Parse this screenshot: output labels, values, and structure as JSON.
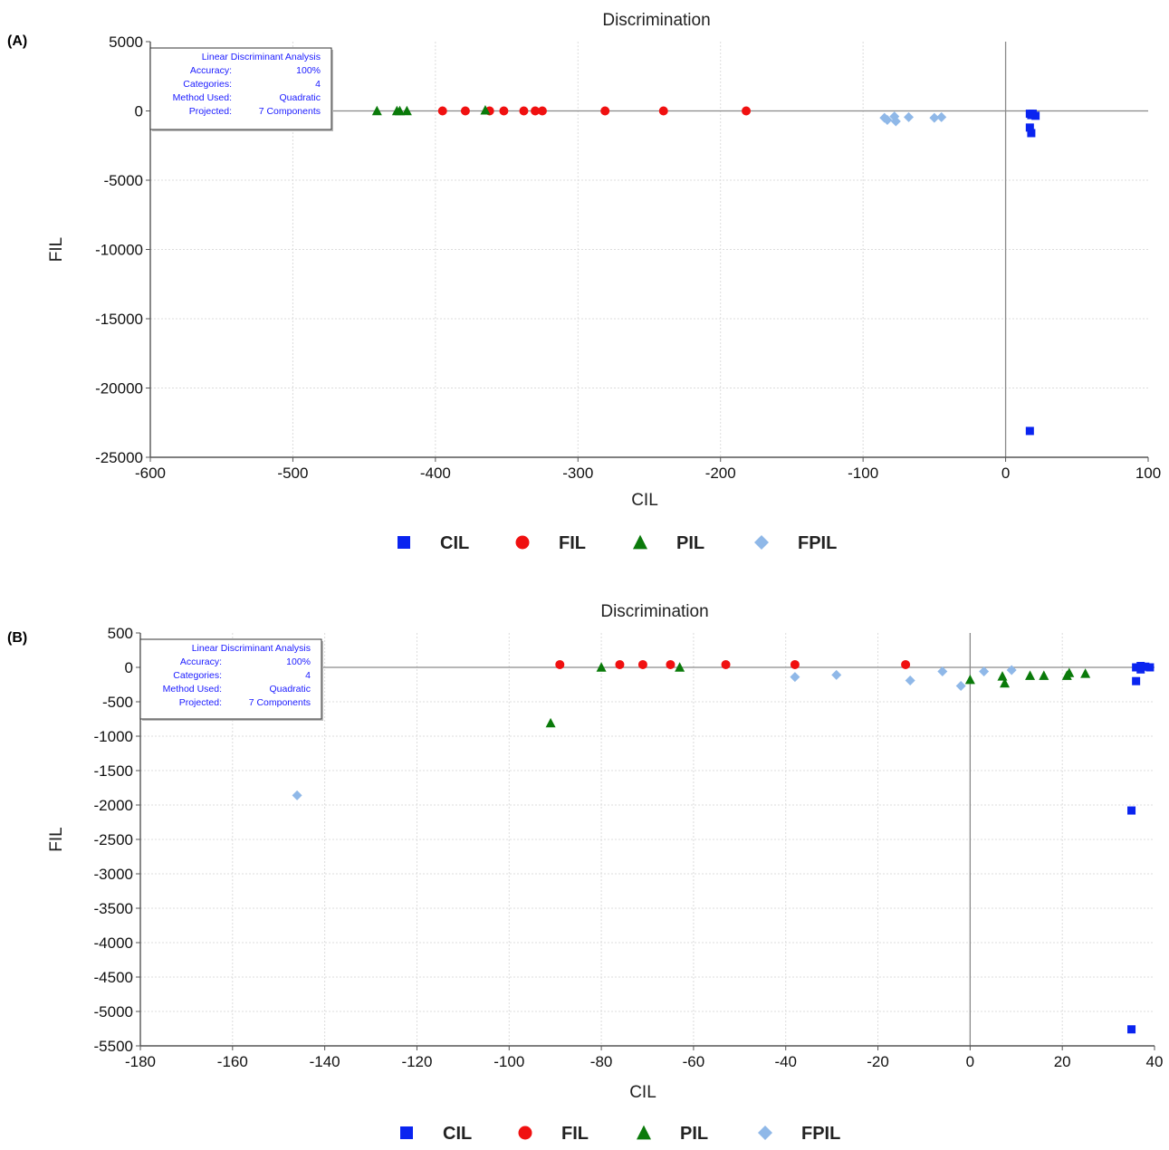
{
  "chart_data": [
    {
      "panel_label": "(A)",
      "type": "scatter",
      "title": "Discrimination",
      "xlabel": "CIL",
      "ylabel": "FIL",
      "xlim": [
        -600,
        100
      ],
      "ylim": [
        -25000,
        5000
      ],
      "xticks": [
        -600,
        -500,
        -400,
        -300,
        -200,
        -100,
        0,
        100
      ],
      "yticks": [
        5000,
        0,
        -5000,
        -10000,
        -15000,
        -20000,
        -25000
      ],
      "grid": true,
      "legend_position": "bottom",
      "info_box": {
        "title": "Linear Discriminant Analysis",
        "rows": [
          {
            "label": "Accuracy:",
            "value": "100%"
          },
          {
            "label": "Categories:",
            "value": "4"
          },
          {
            "label": "Method Used:",
            "value": "Quadratic"
          },
          {
            "label": "Projected:",
            "value": "7 Components"
          }
        ]
      },
      "series": [
        {
          "name": "CIL",
          "marker": "square",
          "color": "#0a24f0",
          "points": [
            [
              17,
              -200
            ],
            [
              18,
              -300
            ],
            [
              19,
              -200
            ],
            [
              21,
              -350
            ],
            [
              17,
              -1200
            ],
            [
              18,
              -1600
            ],
            [
              17,
              -23100
            ]
          ]
        },
        {
          "name": "FIL",
          "marker": "circle",
          "color": "#f01010",
          "points": [
            [
              -395,
              0
            ],
            [
              -379,
              0
            ],
            [
              -362,
              0
            ],
            [
              -352,
              0
            ],
            [
              -338,
              0
            ],
            [
              -330,
              0
            ],
            [
              -325,
              0
            ],
            [
              -281,
              0
            ],
            [
              -240,
              0
            ],
            [
              -182,
              0
            ]
          ]
        },
        {
          "name": "PIL",
          "marker": "triangle",
          "color": "#0a7a0a",
          "points": [
            [
              -441,
              0
            ],
            [
              -427,
              0
            ],
            [
              -425,
              0
            ],
            [
              -420,
              0
            ],
            [
              -365,
              50
            ]
          ]
        },
        {
          "name": "FPIL",
          "marker": "diamond",
          "color": "#8fb8e8",
          "points": [
            [
              -85,
              -500
            ],
            [
              -83,
              -650
            ],
            [
              -78,
              -400
            ],
            [
              -77,
              -750
            ],
            [
              -68,
              -450
            ],
            [
              -50,
              -500
            ],
            [
              -45,
              -450
            ]
          ]
        }
      ]
    },
    {
      "panel_label": "(B)",
      "type": "scatter",
      "title": "Discrimination",
      "xlabel": "CIL",
      "ylabel": "FIL",
      "xlim": [
        -180,
        40
      ],
      "ylim": [
        -5500,
        500
      ],
      "xticks": [
        -180,
        -160,
        -140,
        -120,
        -100,
        -80,
        -60,
        -40,
        -20,
        0,
        20,
        40
      ],
      "yticks": [
        500,
        0,
        -500,
        -1000,
        -1500,
        -2000,
        -2500,
        -3000,
        -3500,
        -4000,
        -4500,
        -5000,
        -5500
      ],
      "grid": true,
      "legend_position": "bottom",
      "info_box": {
        "title": "Linear Discriminant Analysis",
        "rows": [
          {
            "label": "Accuracy:",
            "value": "100%"
          },
          {
            "label": "Categories:",
            "value": "4"
          },
          {
            "label": "Method Used:",
            "value": "Quadratic"
          },
          {
            "label": "Projected:",
            "value": "7 Components"
          }
        ]
      },
      "series": [
        {
          "name": "CIL",
          "marker": "square",
          "color": "#0a24f0",
          "points": [
            [
              36,
              0
            ],
            [
              37,
              20
            ],
            [
              38,
              10
            ],
            [
              39,
              0
            ],
            [
              37,
              -30
            ],
            [
              36,
              -200
            ],
            [
              35,
              -2080
            ],
            [
              35,
              -5260
            ]
          ]
        },
        {
          "name": "FIL",
          "marker": "circle",
          "color": "#f01010",
          "points": [
            [
              -89,
              40
            ],
            [
              -76,
              40
            ],
            [
              -71,
              40
            ],
            [
              -65,
              40
            ],
            [
              -53,
              40
            ],
            [
              -38,
              40
            ],
            [
              -14,
              40
            ]
          ]
        },
        {
          "name": "PIL",
          "marker": "triangle",
          "color": "#0a7a0a",
          "points": [
            [
              -91,
              -810
            ],
            [
              -80,
              0
            ],
            [
              -63,
              0
            ],
            [
              0,
              -180
            ],
            [
              7,
              -130
            ],
            [
              7.5,
              -230
            ],
            [
              13,
              -120
            ],
            [
              16,
              -120
            ],
            [
              21,
              -120
            ],
            [
              21.5,
              -80
            ],
            [
              25,
              -90
            ]
          ]
        },
        {
          "name": "FPIL",
          "marker": "diamond",
          "color": "#8fb8e8",
          "points": [
            [
              -146,
              -1860
            ],
            [
              -38,
              -140
            ],
            [
              -29,
              -110
            ],
            [
              -13,
              -190
            ],
            [
              -6,
              -60
            ],
            [
              -2,
              -270
            ],
            [
              3,
              -60
            ],
            [
              9,
              -40
            ]
          ]
        }
      ]
    }
  ]
}
